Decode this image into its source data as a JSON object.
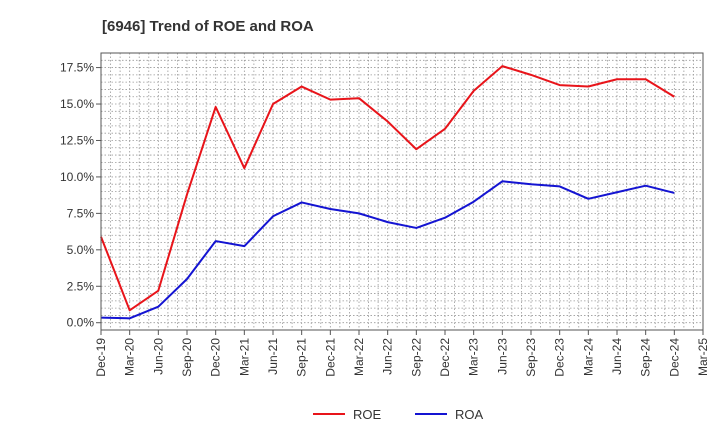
{
  "chart_data": {
    "type": "line",
    "title": "[6946]  Trend of ROE and ROA",
    "xlabel": "",
    "ylabel": "",
    "ylim": [
      -0.5,
      18.5
    ],
    "yticks": [
      0.0,
      2.5,
      5.0,
      7.5,
      10.0,
      12.5,
      15.0,
      17.5
    ],
    "ytick_labels": [
      "0.0%",
      "2.5%",
      "5.0%",
      "7.5%",
      "10.0%",
      "12.5%",
      "15.0%",
      "17.5%"
    ],
    "categories": [
      "Dec-19",
      "Mar-20",
      "Jun-20",
      "Sep-20",
      "Dec-20",
      "Mar-21",
      "Jun-21",
      "Sep-21",
      "Dec-21",
      "Mar-22",
      "Jun-22",
      "Sep-22",
      "Dec-22",
      "Mar-23",
      "Jun-23",
      "Sep-23",
      "Dec-23",
      "Mar-24",
      "Jun-24",
      "Sep-24",
      "Dec-24",
      "Mar-25"
    ],
    "grid": true,
    "legend_position": "bottom",
    "series": [
      {
        "name": "ROE",
        "color": "#e8141a",
        "values": [
          5.9,
          0.85,
          2.2,
          8.8,
          14.8,
          10.6,
          15.0,
          16.2,
          15.3,
          15.4,
          13.8,
          11.9,
          13.3,
          15.9,
          17.6,
          17.0,
          16.3,
          16.2,
          16.7,
          16.7,
          15.5,
          null
        ]
      },
      {
        "name": "ROA",
        "color": "#1414d2",
        "values": [
          0.35,
          0.3,
          1.1,
          3.0,
          5.6,
          5.25,
          7.3,
          8.25,
          7.8,
          7.5,
          6.9,
          6.5,
          7.2,
          8.3,
          9.7,
          9.5,
          9.35,
          8.5,
          8.95,
          9.4,
          8.9,
          null
        ]
      }
    ]
  }
}
